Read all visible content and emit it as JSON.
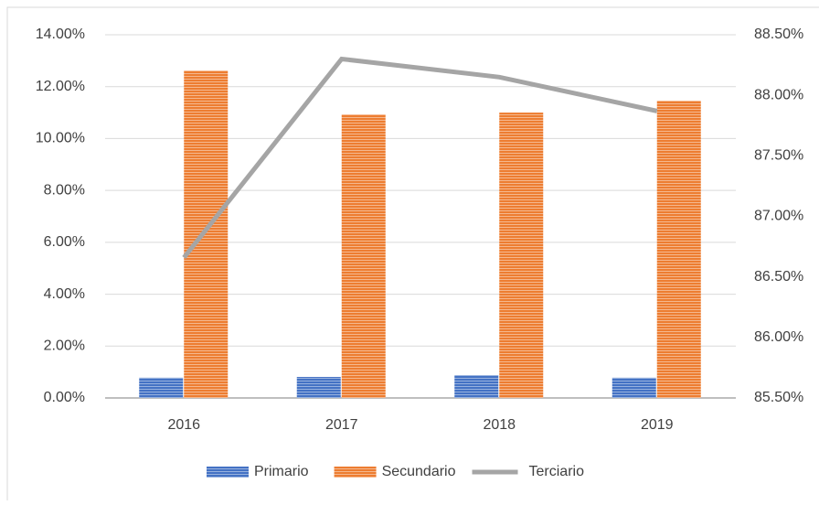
{
  "chart_data": {
    "type": "bar",
    "categories": [
      "2016",
      "2017",
      "2018",
      "2019"
    ],
    "series": [
      {
        "name": "Primario",
        "color": "#4472c4",
        "values": [
          0.78,
          0.81,
          0.88,
          0.78
        ]
      },
      {
        "name": "Secundario",
        "color": "#ed7d31",
        "values": [
          12.62,
          10.93,
          11.0,
          11.46
        ]
      },
      {
        "name": "Terciario",
        "color": "#a5a5a5",
        "type": "line",
        "axis": "y2",
        "values": [
          86.66,
          88.3,
          88.15,
          87.87
        ]
      }
    ],
    "ylim": [
      0,
      14
    ],
    "yticks": [
      {
        "value": 0,
        "label": "0.00%"
      },
      {
        "value": 2,
        "label": "2.00%"
      },
      {
        "value": 4,
        "label": "4.00%"
      },
      {
        "value": 6,
        "label": "6.00%"
      },
      {
        "value": 8,
        "label": "8.00%"
      },
      {
        "value": 10,
        "label": "10.00%"
      },
      {
        "value": 12,
        "label": "12.00%"
      },
      {
        "value": 14,
        "label": "14.00%"
      }
    ],
    "y2lim": [
      85.5,
      88.5
    ],
    "y2ticks": [
      {
        "value": 85.5,
        "label": "85.50%"
      },
      {
        "value": 86,
        "label": "86.00%"
      },
      {
        "value": 86.5,
        "label": "86.50%"
      },
      {
        "value": 87,
        "label": "87.00%"
      },
      {
        "value": 87.5,
        "label": "87.50%"
      },
      {
        "value": 88,
        "label": "88.00%"
      },
      {
        "value": 88.5,
        "label": "88.50%"
      }
    ],
    "grid": true,
    "legend": "bottom"
  }
}
